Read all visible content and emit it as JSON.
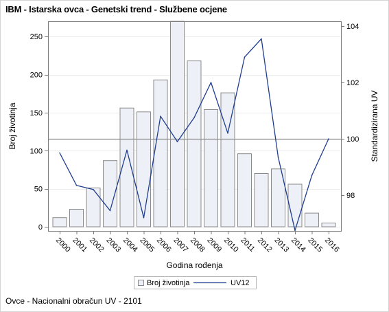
{
  "title": "IBM - Istarska ovca - Genetski trend - Službene ocjene",
  "footnote": "Ovce - Nacionalni obračun UV - 2101",
  "chart_data": {
    "type": "bar",
    "categories": [
      "2000",
      "2001",
      "2002",
      "2003",
      "2004",
      "2005",
      "2006",
      "2007",
      "2008",
      "2009",
      "2010",
      "2011",
      "2012",
      "2013",
      "2014",
      "2015",
      "2016"
    ],
    "series": [
      {
        "name": "Broj životinja",
        "type": "bar",
        "axis": "left",
        "color": "#edf0f6",
        "values": [
          12,
          23,
          51,
          87,
          156,
          151,
          193,
          270,
          218,
          154,
          176,
          96,
          70,
          76,
          56,
          18,
          5
        ]
      },
      {
        "name": "UV12",
        "type": "line",
        "axis": "right",
        "color": "#1f3d8f",
        "values": [
          99.5,
          98.35,
          98.2,
          97.45,
          99.6,
          97.2,
          100.8,
          99.9,
          100.75,
          102.0,
          100.2,
          102.9,
          103.55,
          99.35,
          96.75,
          98.7,
          100.0
        ]
      }
    ],
    "xlabel": "Godina rođenja",
    "ylabel": "Broj životinja",
    "y2label": "Standardizirana UV",
    "ylim": [
      0,
      270
    ],
    "yticks": [
      0,
      50,
      100,
      150,
      200,
      250
    ],
    "y2lim": [
      96.86,
      104.0
    ],
    "y2ticks": [
      98,
      100,
      102,
      104
    ],
    "reference_line_y2": 100,
    "grid": true,
    "legend_position": "bottom"
  }
}
